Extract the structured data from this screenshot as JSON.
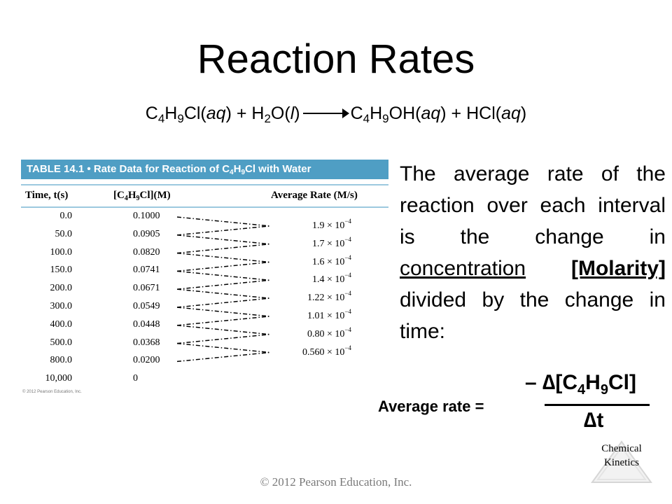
{
  "slide": {
    "title": "Reaction Rates",
    "footer": "© 2012 Pearson Education, Inc.",
    "logo": {
      "line1": "Chemical",
      "line2": "Kinetics"
    }
  },
  "equation": {
    "r1_a": "C",
    "r1_s1": "4",
    "r1_b": "H",
    "r1_s2": "9",
    "r1_c": "Cl(",
    "r1_d": "aq",
    "r1_e": ") + H",
    "r2_s1": "2",
    "r2_a": "O(",
    "r2_b": "l",
    "r2_c": ")",
    "p1_a": "C",
    "p1_s1": "4",
    "p1_b": "H",
    "p1_s2": "9",
    "p1_c": "OH(",
    "p1_d": "aq",
    "p1_e": ") + HCl(",
    "p1_f": "aq",
    "p1_g": ")"
  },
  "table": {
    "banner_prefix": "TABLE 14.1  •  Rate Data for Reaction of C",
    "banner_s1": "4",
    "banner_mid": "H",
    "banner_s2": "9",
    "banner_suffix": "Cl with Water",
    "hdr_time": "Time, t(s)",
    "hdr_conc_a": "[C",
    "hdr_conc_s1": "4",
    "hdr_conc_b": "H",
    "hdr_conc_s2": "9",
    "hdr_conc_c": "Cl](M)",
    "hdr_rate": "Average Rate (M/s)",
    "times": [
      "0.0",
      "50.0",
      "100.0",
      "150.0",
      "200.0",
      "300.0",
      "400.0",
      "500.0",
      "800.0",
      "10,000"
    ],
    "concs": [
      "0.1000",
      "0.0905",
      "0.0820",
      "0.0741",
      "0.0671",
      "0.0549",
      "0.0448",
      "0.0368",
      "0.0200",
      "0"
    ],
    "rates": [
      "1.9 × 10",
      "1.7 × 10",
      "1.6 × 10",
      "1.4 × 10",
      "1.22 × 10",
      "1.01 × 10",
      "0.80 × 10",
      "0.560 × 10"
    ],
    "rate_exp": "−4",
    "copyright": "© 2012 Pearson Education, Inc."
  },
  "explanation": {
    "part1": "The average rate of the reaction over each interval is the change in ",
    "underlined": "concentration",
    "bold_underlined": "[Molarity]",
    "part2": " divided by the change in time:"
  },
  "formula": {
    "label": "Average rate =",
    "num_a": "– ∆[C",
    "num_s1": "4",
    "num_b": "H",
    "num_s2": "9",
    "num_c": "Cl]",
    "den": "∆t"
  }
}
